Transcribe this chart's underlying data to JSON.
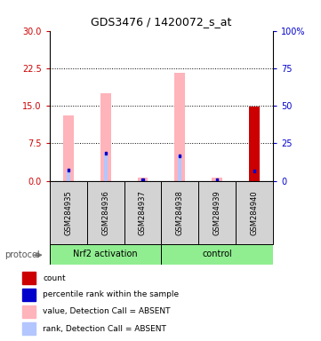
{
  "title": "GDS3476 / 1420072_s_at",
  "samples": [
    "GSM284935",
    "GSM284936",
    "GSM284937",
    "GSM284938",
    "GSM284939",
    "GSM284940"
  ],
  "ylim_left": [
    0,
    30
  ],
  "ylim_right": [
    0,
    100
  ],
  "yticks_left": [
    0,
    7.5,
    15,
    22.5,
    30
  ],
  "yticks_right": [
    0,
    25,
    50,
    75,
    100
  ],
  "ytick_labels_right": [
    "0",
    "25",
    "50",
    "75",
    "100%"
  ],
  "left_color": "#cc0000",
  "right_color": "#0000cc",
  "pink_bar_values": [
    13.0,
    17.5,
    0.7,
    21.5,
    0.7,
    0.0
  ],
  "light_blue_bar_values": [
    2.1,
    5.5,
    0.15,
    5.0,
    0.15,
    2.0
  ],
  "count_values": [
    0,
    0,
    0,
    0,
    0,
    14.8
  ],
  "pink_color": "#ffb3ba",
  "light_blue_color": "#b3c6ff",
  "count_color": "#cc0000",
  "blue_dot_color": "#0000cc",
  "bg_color": "#ffffff",
  "sample_box_color": "#d3d3d3",
  "group_color": "#90EE90",
  "protocol_label": "protocol",
  "nrf2_label": "Nrf2 activation",
  "control_label": "control",
  "legend_items": [
    {
      "color": "#cc0000",
      "label": "count"
    },
    {
      "color": "#0000cc",
      "label": "percentile rank within the sample"
    },
    {
      "color": "#ffb3ba",
      "label": "value, Detection Call = ABSENT"
    },
    {
      "color": "#b3c6ff",
      "label": "rank, Detection Call = ABSENT"
    }
  ],
  "bar_width": 0.28,
  "blue_bar_width": 0.1
}
